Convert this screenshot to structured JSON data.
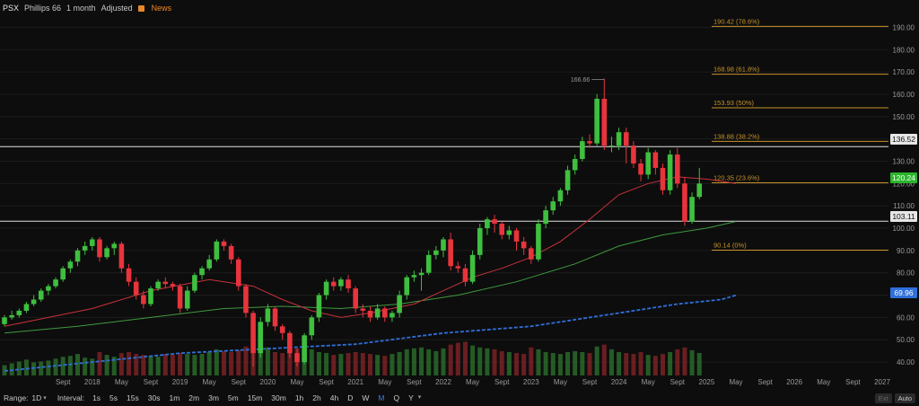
{
  "header": {
    "symbol": "PSX",
    "company": "Phillips 66",
    "interval": "1 month",
    "adjusted": "Adjusted",
    "news": "News"
  },
  "price_tags": {
    "upper_line": "136.52",
    "current": "120.24",
    "lower_line": "103.11",
    "ma_long": "69.96"
  },
  "colors": {
    "up": "#3fbf3f",
    "down": "#e8343c",
    "fib": "#c7922a",
    "ma_red": "#c8323c",
    "ma_green": "#3f9a3f",
    "ma_blue": "#2f6fd8",
    "current_tag": "#2bb52b",
    "ma_tag": "#2f6fd8"
  },
  "footer": {
    "range_label": "Range:",
    "range_value": "1D",
    "interval_label": "Interval:",
    "intervals": [
      "1s",
      "5s",
      "15s",
      "30s",
      "1m",
      "2m",
      "3m",
      "5m",
      "15m",
      "30m",
      "1h",
      "2h",
      "4h",
      "D",
      "W",
      "M",
      "Q",
      "Y"
    ],
    "active_interval": "M",
    "ext": "Ext",
    "auto": "Auto"
  },
  "chart_data": {
    "type": "candlestick",
    "y_ticks": [
      40,
      50,
      60,
      70,
      80,
      90,
      100,
      110,
      120,
      130,
      140,
      150,
      160,
      170,
      180,
      190
    ],
    "y_tick_labels": [
      "40.00",
      "50.00",
      "60.00",
      "70.00",
      "80.00",
      "90.00",
      "100.00",
      "110.00",
      "120.00",
      "130.00",
      "140.00",
      "150.00",
      "160.00",
      "170.00",
      "180.00",
      "190.00"
    ],
    "ylim": [
      34,
      195
    ],
    "x_axis_labels": [
      {
        "label": "Sept",
        "t": 8
      },
      {
        "label": "2018",
        "t": 12
      },
      {
        "label": "May",
        "t": 16
      },
      {
        "label": "Sept",
        "t": 20
      },
      {
        "label": "2019",
        "t": 24
      },
      {
        "label": "May",
        "t": 28
      },
      {
        "label": "Sept",
        "t": 32
      },
      {
        "label": "2020",
        "t": 36
      },
      {
        "label": "May",
        "t": 40
      },
      {
        "label": "Sept",
        "t": 44
      },
      {
        "label": "2021",
        "t": 48
      },
      {
        "label": "May",
        "t": 52
      },
      {
        "label": "Sept",
        "t": 56
      },
      {
        "label": "2022",
        "t": 60
      },
      {
        "label": "May",
        "t": 64
      },
      {
        "label": "Sept",
        "t": 68
      },
      {
        "label": "2023",
        "t": 72
      },
      {
        "label": "May",
        "t": 76
      },
      {
        "label": "Sept",
        "t": 80
      },
      {
        "label": "2024",
        "t": 84
      },
      {
        "label": "May",
        "t": 88
      },
      {
        "label": "Sept",
        "t": 92
      },
      {
        "label": "2025",
        "t": 96
      },
      {
        "label": "May",
        "t": 100
      },
      {
        "label": "Sept",
        "t": 104
      },
      {
        "label": "2026",
        "t": 108
      },
      {
        "label": "May",
        "t": 112
      },
      {
        "label": "Sept",
        "t": 116
      },
      {
        "label": "2027",
        "t": 120
      }
    ],
    "first_month_offset": 0,
    "candles": [
      [
        57,
        60,
        56,
        61
      ],
      [
        60,
        61,
        59,
        63
      ],
      [
        61,
        63,
        60,
        64
      ],
      [
        63,
        66,
        62,
        67
      ],
      [
        66,
        68,
        65,
        70
      ],
      [
        68,
        72,
        67,
        73
      ],
      [
        72,
        74,
        70,
        75
      ],
      [
        74,
        77,
        73,
        78
      ],
      [
        77,
        82,
        76,
        83
      ],
      [
        82,
        85,
        80,
        86
      ],
      [
        85,
        90,
        83,
        91
      ],
      [
        90,
        92,
        88,
        94
      ],
      [
        92,
        95,
        90,
        96
      ],
      [
        95,
        87,
        85,
        96
      ],
      [
        87,
        91,
        86,
        92
      ],
      [
        91,
        93,
        88,
        94
      ],
      [
        93,
        82,
        80,
        94
      ],
      [
        82,
        76,
        74,
        84
      ],
      [
        76,
        70,
        68,
        78
      ],
      [
        70,
        66,
        64,
        72
      ],
      [
        66,
        73,
        65,
        74
      ],
      [
        73,
        76,
        72,
        77
      ],
      [
        76,
        75,
        73,
        78
      ],
      [
        75,
        74,
        72,
        76
      ],
      [
        74,
        64,
        62,
        75
      ],
      [
        64,
        72,
        63,
        74
      ],
      [
        72,
        79,
        71,
        80
      ],
      [
        79,
        82,
        77,
        83
      ],
      [
        82,
        86,
        81,
        88
      ],
      [
        86,
        94,
        85,
        95
      ],
      [
        94,
        92,
        90,
        95
      ],
      [
        92,
        86,
        84,
        93
      ],
      [
        86,
        74,
        72,
        87
      ],
      [
        74,
        62,
        60,
        75
      ],
      [
        62,
        44,
        38,
        63
      ],
      [
        44,
        58,
        42,
        60
      ],
      [
        58,
        64,
        56,
        66
      ],
      [
        64,
        56,
        54,
        65
      ],
      [
        56,
        53,
        50,
        57
      ],
      [
        53,
        44,
        42,
        54
      ],
      [
        44,
        40,
        38,
        46
      ],
      [
        40,
        52,
        39,
        53
      ],
      [
        52,
        60,
        50,
        61
      ],
      [
        60,
        70,
        58,
        71
      ],
      [
        70,
        76,
        68,
        77
      ],
      [
        76,
        74,
        72,
        78
      ],
      [
        74,
        77,
        72,
        78
      ],
      [
        77,
        73,
        71,
        79
      ],
      [
        73,
        64,
        62,
        74
      ],
      [
        64,
        63,
        60,
        66
      ],
      [
        63,
        60,
        58,
        65
      ],
      [
        60,
        64,
        59,
        66
      ],
      [
        64,
        60,
        58,
        65
      ],
      [
        60,
        62,
        58,
        63
      ],
      [
        62,
        70,
        60,
        72
      ],
      [
        70,
        78,
        68,
        79
      ],
      [
        78,
        79,
        76,
        81
      ],
      [
        79,
        80,
        72,
        82
      ],
      [
        80,
        88,
        79,
        90
      ],
      [
        88,
        90,
        86,
        92
      ],
      [
        90,
        95,
        87,
        96
      ],
      [
        95,
        83,
        81,
        98
      ],
      [
        83,
        82,
        80,
        85
      ],
      [
        82,
        76,
        74,
        84
      ],
      [
        76,
        88,
        75,
        90
      ],
      [
        88,
        100,
        86,
        102
      ],
      [
        100,
        104,
        97,
        105
      ],
      [
        104,
        102,
        98,
        106
      ],
      [
        102,
        97,
        95,
        103
      ],
      [
        97,
        99,
        95,
        101
      ],
      [
        99,
        94,
        90,
        100
      ],
      [
        94,
        91,
        88,
        96
      ],
      [
        91,
        86,
        84,
        92
      ],
      [
        86,
        102,
        85,
        104
      ],
      [
        102,
        108,
        100,
        110
      ],
      [
        108,
        112,
        106,
        114
      ],
      [
        112,
        117,
        110,
        118
      ],
      [
        117,
        126,
        115,
        128
      ],
      [
        126,
        131,
        124,
        133
      ],
      [
        131,
        139,
        130,
        141
      ],
      [
        139,
        138,
        136,
        142
      ],
      [
        138,
        158,
        137,
        160
      ],
      [
        158,
        137,
        135,
        167
      ],
      [
        137,
        137,
        134,
        141
      ],
      [
        137,
        143,
        135,
        145
      ],
      [
        143,
        137,
        129,
        145
      ],
      [
        137,
        129,
        127,
        139
      ],
      [
        129,
        124,
        121,
        131
      ],
      [
        124,
        134,
        122,
        136
      ],
      [
        134,
        127,
        124,
        135
      ],
      [
        127,
        117,
        115,
        129
      ],
      [
        117,
        133,
        115,
        135
      ],
      [
        133,
        120,
        118,
        136
      ],
      [
        120,
        103,
        101,
        123
      ],
      [
        103,
        114,
        102,
        116
      ],
      [
        114,
        120,
        113,
        127
      ]
    ],
    "volume_relative": [
      0.22,
      0.26,
      0.3,
      0.34,
      0.28,
      0.3,
      0.32,
      0.36,
      0.4,
      0.42,
      0.46,
      0.38,
      0.36,
      0.5,
      0.44,
      0.4,
      0.48,
      0.5,
      0.46,
      0.44,
      0.42,
      0.4,
      0.46,
      0.44,
      0.48,
      0.46,
      0.44,
      0.46,
      0.5,
      0.56,
      0.52,
      0.5,
      0.54,
      0.62,
      0.8,
      0.66,
      0.6,
      0.5,
      0.48,
      0.52,
      0.58,
      0.62,
      0.56,
      0.5,
      0.48,
      0.44,
      0.46,
      0.48,
      0.5,
      0.48,
      0.46,
      0.44,
      0.42,
      0.46,
      0.5,
      0.56,
      0.58,
      0.6,
      0.56,
      0.52,
      0.58,
      0.66,
      0.7,
      0.72,
      0.64,
      0.6,
      0.58,
      0.56,
      0.52,
      0.5,
      0.48,
      0.46,
      0.6,
      0.56,
      0.5,
      0.48,
      0.46,
      0.5,
      0.52,
      0.5,
      0.48,
      0.62,
      0.66,
      0.56,
      0.5,
      0.48,
      0.46,
      0.5,
      0.44,
      0.42,
      0.46,
      0.5,
      0.56,
      0.6,
      0.54,
      0.48
    ],
    "ma_red": [
      [
        0,
        56
      ],
      [
        12,
        64
      ],
      [
        20,
        72
      ],
      [
        28,
        77
      ],
      [
        34,
        74
      ],
      [
        38,
        68
      ],
      [
        42,
        63
      ],
      [
        46,
        60
      ],
      [
        50,
        62
      ],
      [
        56,
        66
      ],
      [
        60,
        72
      ],
      [
        64,
        78
      ],
      [
        68,
        82
      ],
      [
        72,
        87
      ],
      [
        76,
        94
      ],
      [
        80,
        104
      ],
      [
        84,
        115
      ],
      [
        88,
        120
      ],
      [
        92,
        123
      ],
      [
        96,
        122
      ],
      [
        100,
        120
      ]
    ],
    "ma_green": [
      [
        0,
        53
      ],
      [
        10,
        56
      ],
      [
        20,
        60
      ],
      [
        30,
        64
      ],
      [
        38,
        65
      ],
      [
        46,
        64
      ],
      [
        54,
        66
      ],
      [
        62,
        70
      ],
      [
        70,
        76
      ],
      [
        78,
        84
      ],
      [
        84,
        92
      ],
      [
        90,
        97
      ],
      [
        96,
        100
      ],
      [
        100,
        103
      ]
    ],
    "ma_blue": [
      [
        0,
        36
      ],
      [
        12,
        40
      ],
      [
        24,
        44
      ],
      [
        36,
        46
      ],
      [
        48,
        48
      ],
      [
        60,
        53
      ],
      [
        72,
        56
      ],
      [
        80,
        60
      ],
      [
        86,
        63
      ],
      [
        92,
        66
      ],
      [
        98,
        68
      ],
      [
        100,
        69.96
      ]
    ],
    "horizontal_lines": [
      136.52,
      103.11
    ],
    "fib_levels": [
      {
        "value": 190.42,
        "label": "190.42 (78.6%)"
      },
      {
        "value": 168.98,
        "label": "168.98 (61.8%)"
      },
      {
        "value": 153.93,
        "label": "153.93 (50%)"
      },
      {
        "value": 138.88,
        "label": "138.88 (38.2%)"
      },
      {
        "value": 120.35,
        "label": "120.35 (23.6%)"
      },
      {
        "value": 90.14,
        "label": "90.14 (0%)"
      }
    ],
    "high_marker": {
      "value": 166.66,
      "label": "166.66"
    }
  }
}
